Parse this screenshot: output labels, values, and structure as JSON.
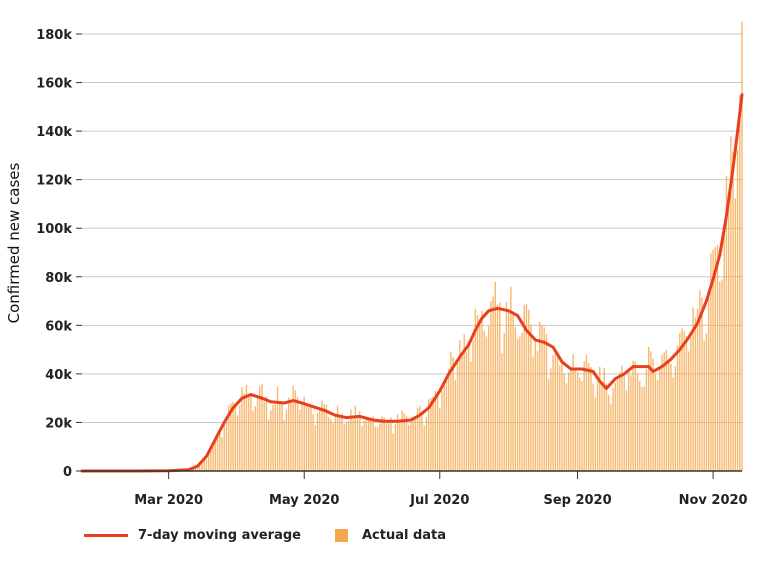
{
  "chart_data": {
    "type": "bar+line",
    "ylabel": "Confirmed new cases",
    "xlabel": "",
    "title": "",
    "x_ticks": [
      "Mar 2020",
      "May 2020",
      "Jul 2020",
      "Sep 2020",
      "Nov 2020"
    ],
    "y_ticks": [
      "0",
      "20k",
      "40k",
      "60k",
      "80k",
      "100k",
      "120k",
      "140k",
      "160k",
      "180k"
    ],
    "ylim": [
      0,
      180000
    ],
    "x_range": [
      "2020-01-22",
      "2020-11-14"
    ],
    "grid": true,
    "legend_position": "bottom-left",
    "series": [
      {
        "name": "7-day moving average",
        "kind": "line",
        "color": "#e8401c",
        "points": [
          [
            "2020-01-22",
            0
          ],
          [
            "2020-02-15",
            0
          ],
          [
            "2020-03-01",
            100
          ],
          [
            "2020-03-10",
            500
          ],
          [
            "2020-03-14",
            2000
          ],
          [
            "2020-03-18",
            6000
          ],
          [
            "2020-03-22",
            13000
          ],
          [
            "2020-03-26",
            20000
          ],
          [
            "2020-03-30",
            26000
          ],
          [
            "2020-04-03",
            30000
          ],
          [
            "2020-04-07",
            31500
          ],
          [
            "2020-04-12",
            30000
          ],
          [
            "2020-04-16",
            28500
          ],
          [
            "2020-04-22",
            28000
          ],
          [
            "2020-04-26",
            29000
          ],
          [
            "2020-04-30",
            28000
          ],
          [
            "2020-05-05",
            26500
          ],
          [
            "2020-05-10",
            25000
          ],
          [
            "2020-05-15",
            23000
          ],
          [
            "2020-05-20",
            22000
          ],
          [
            "2020-05-26",
            22500
          ],
          [
            "2020-06-01",
            21000
          ],
          [
            "2020-06-06",
            20500
          ],
          [
            "2020-06-12",
            20500
          ],
          [
            "2020-06-18",
            21000
          ],
          [
            "2020-06-22",
            23000
          ],
          [
            "2020-06-26",
            26000
          ],
          [
            "2020-07-01",
            33000
          ],
          [
            "2020-07-05",
            40000
          ],
          [
            "2020-07-10",
            47000
          ],
          [
            "2020-07-14",
            52000
          ],
          [
            "2020-07-17",
            58000
          ],
          [
            "2020-07-20",
            63000
          ],
          [
            "2020-07-23",
            66000
          ],
          [
            "2020-07-27",
            67000
          ],
          [
            "2020-08-01",
            66000
          ],
          [
            "2020-08-05",
            64000
          ],
          [
            "2020-08-09",
            58000
          ],
          [
            "2020-08-13",
            54000
          ],
          [
            "2020-08-17",
            53000
          ],
          [
            "2020-08-21",
            51000
          ],
          [
            "2020-08-25",
            45000
          ],
          [
            "2020-08-29",
            42000
          ],
          [
            "2020-09-03",
            42000
          ],
          [
            "2020-09-08",
            41000
          ],
          [
            "2020-09-11",
            37000
          ],
          [
            "2020-09-14",
            34000
          ],
          [
            "2020-09-18",
            38000
          ],
          [
            "2020-09-22",
            40000
          ],
          [
            "2020-09-26",
            43000
          ],
          [
            "2020-09-30",
            43000
          ],
          [
            "2020-10-03",
            43000
          ],
          [
            "2020-10-05",
            41000
          ],
          [
            "2020-10-09",
            43000
          ],
          [
            "2020-10-13",
            46000
          ],
          [
            "2020-10-17",
            50000
          ],
          [
            "2020-10-21",
            55000
          ],
          [
            "2020-10-25",
            61000
          ],
          [
            "2020-10-29",
            70000
          ],
          [
            "2020-11-01",
            79000
          ],
          [
            "2020-11-04",
            89000
          ],
          [
            "2020-11-07",
            105000
          ],
          [
            "2020-11-10",
            125000
          ],
          [
            "2020-11-12",
            140000
          ],
          [
            "2020-11-14",
            155000
          ]
        ]
      },
      {
        "name": "Actual data",
        "kind": "bar",
        "color": "#f5a54a",
        "note_values_source": "daily bars approximated around the moving average; peak bar ~185k on 2020-11-14",
        "peak": [
          "2020-11-14",
          185000
        ]
      }
    ]
  },
  "legend": {
    "line_label": "7-day moving average",
    "bar_label": "Actual data",
    "line_color": "#e8401c",
    "bar_color": "#f5a54a"
  }
}
